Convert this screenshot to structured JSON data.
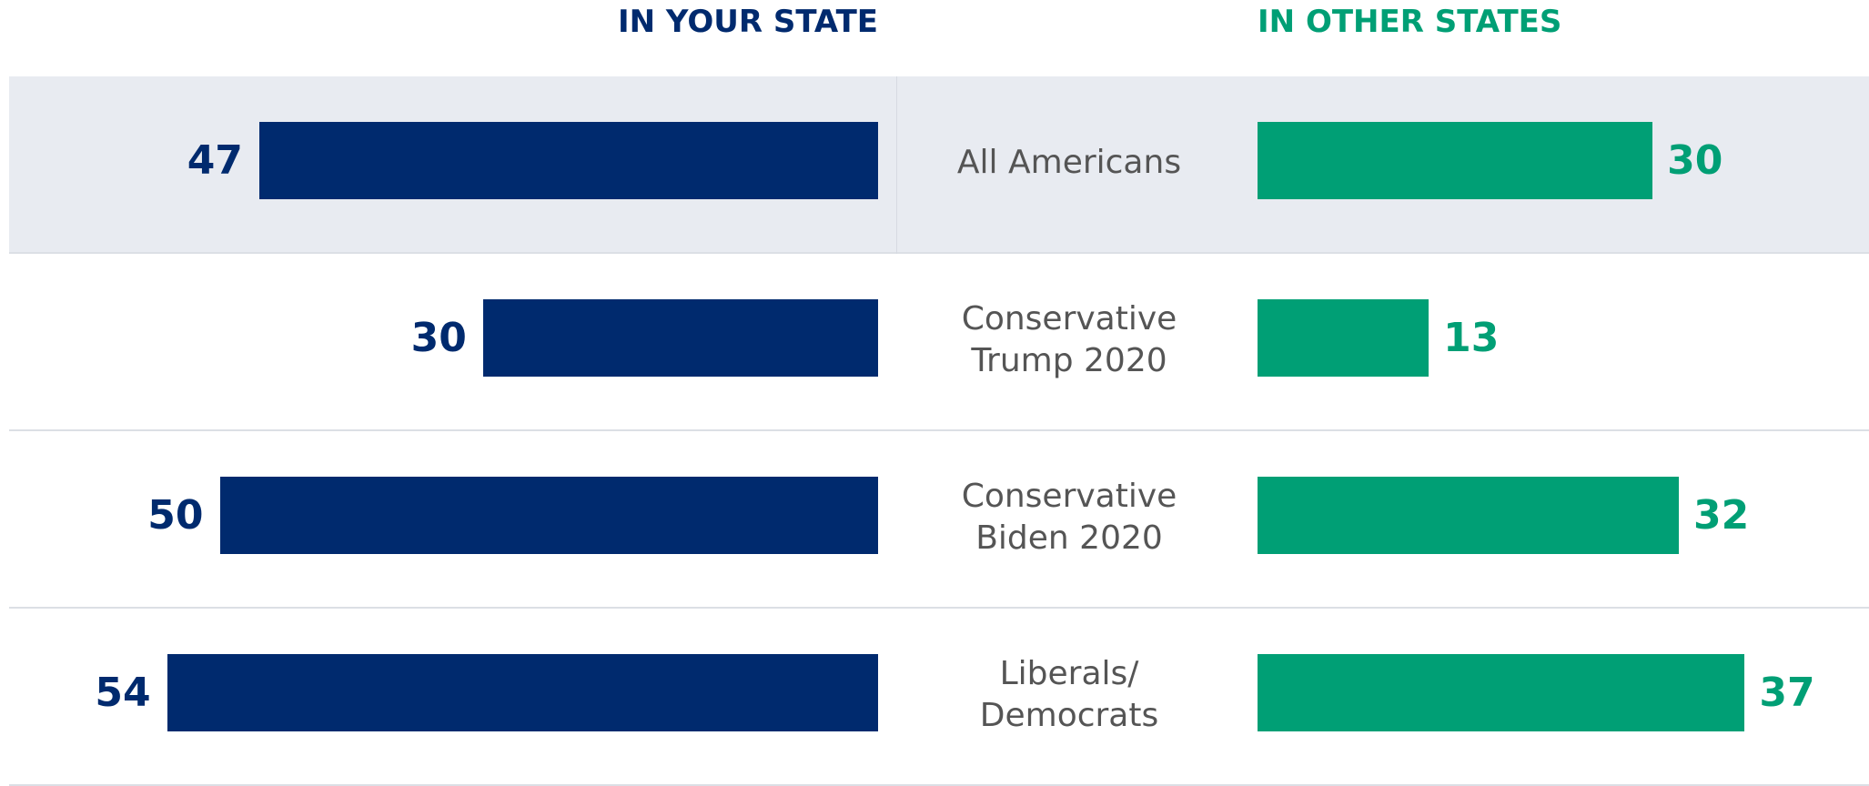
{
  "chart_data": {
    "type": "butterfly-bar",
    "categories": [
      "All Americans",
      "Conservative\nTrump 2020",
      "Conservative\nBiden 2020",
      "Liberals/\nDemocrats"
    ],
    "series": [
      {
        "name": "IN YOUR STATE",
        "color": "#002a6e",
        "values": [
          47,
          30,
          50,
          54
        ]
      },
      {
        "name": "IN OTHER STATES",
        "color": "#009f75",
        "values": [
          30,
          13,
          32,
          37
        ]
      }
    ]
  }
}
